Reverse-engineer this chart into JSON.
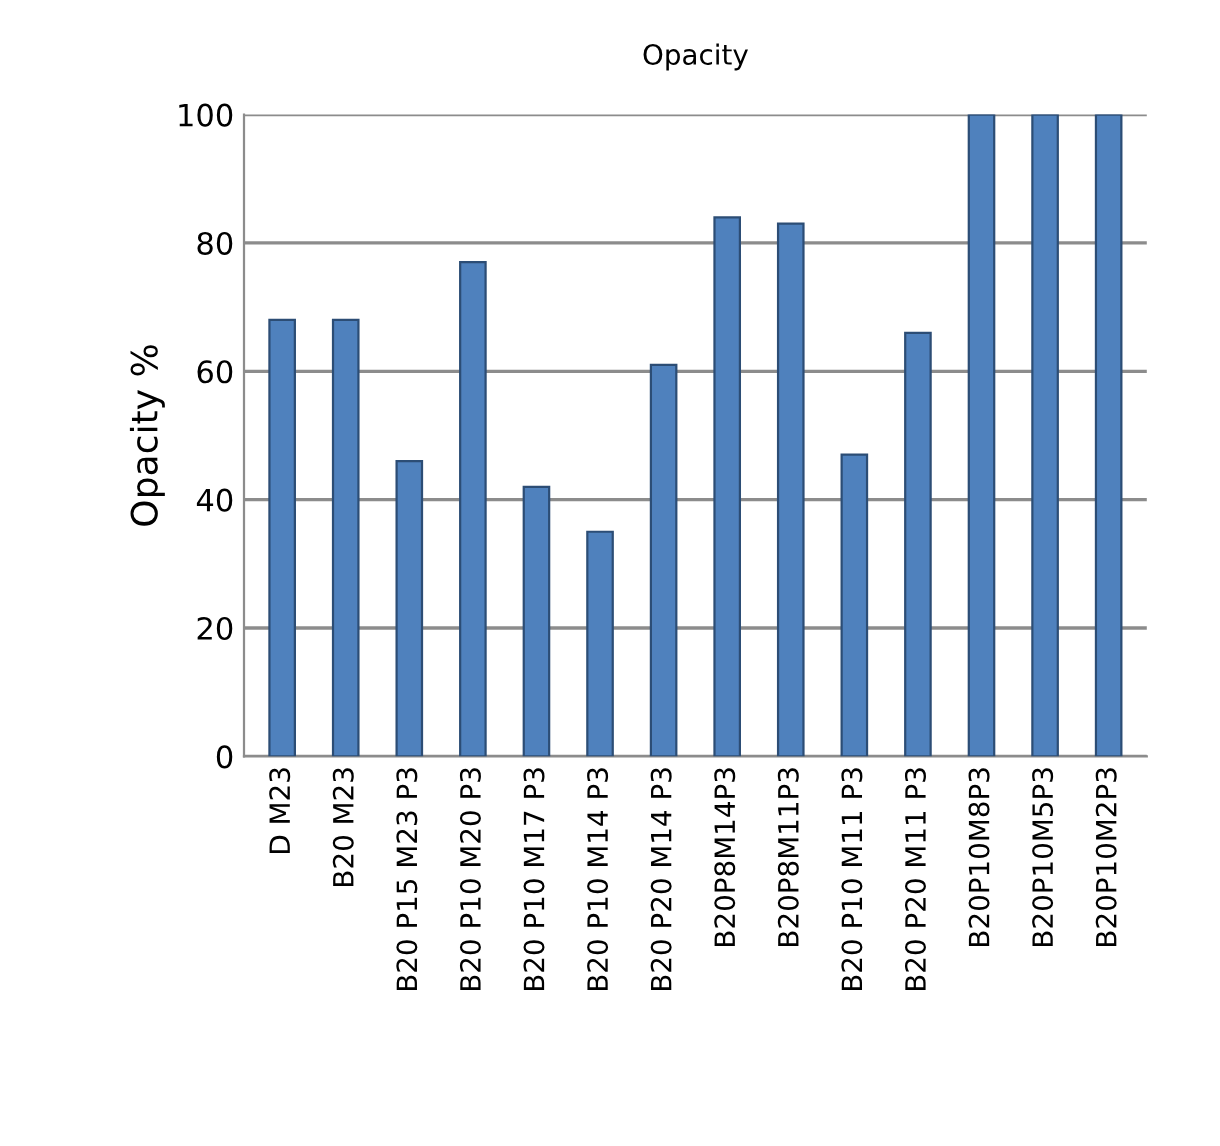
{
  "chart_data": {
    "type": "bar",
    "title": "Opacity",
    "ylabel": "Opacity %",
    "categories": [
      "D M23",
      "B20 M23",
      "B20 P15 M23 P3",
      "B20 P10 M20 P3",
      "B20 P10 M17 P3",
      "B20 P10 M14 P3",
      "B20 P20 M14 P3",
      "B20P8M14P3",
      "B20P8M11P3",
      "B20 P10 M11 P3",
      "B20 P20 M11 P3",
      "B20P10M8P3",
      "B20P10M5P3",
      "B20P10M2P3"
    ],
    "values": [
      68,
      68,
      46,
      77,
      42,
      35,
      61,
      84,
      83,
      47,
      66,
      100,
      100,
      100
    ],
    "color": "#4f81bd",
    "ylim": [
      0,
      100
    ],
    "yticks": [
      0,
      20,
      40,
      60,
      80,
      100
    ],
    "grid": "y"
  }
}
